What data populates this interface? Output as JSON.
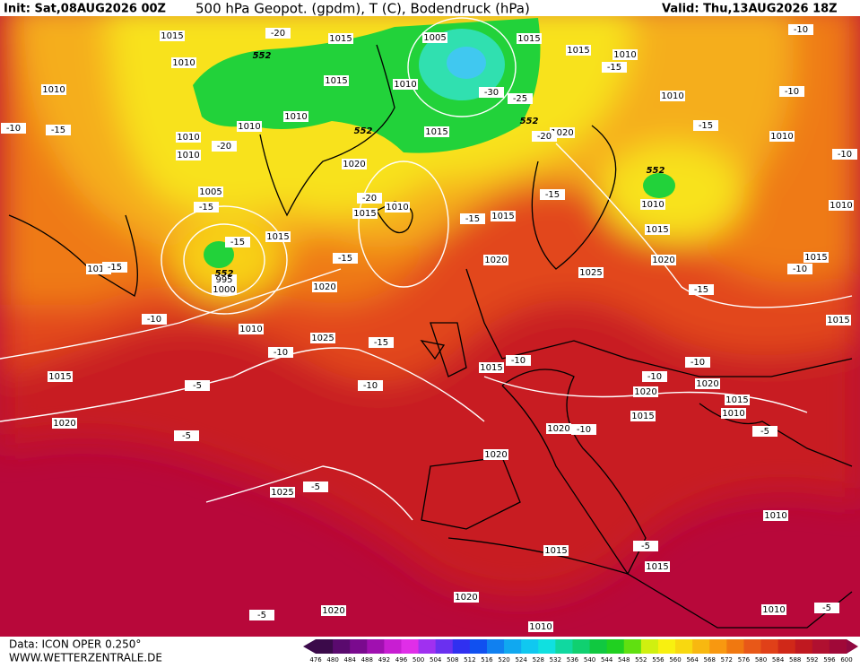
{
  "header": {
    "init": "Init: Sat,08AUG2026 00Z",
    "title": "500 hPa Geopot. (gpdm), T (C), Bodendruck (hPa)",
    "valid": "Valid: Thu,13AUG2026 18Z"
  },
  "footer": {
    "data": "Data: ICON OPER 0.250°",
    "site": "WWW.WETTERZENTRALE.DE"
  },
  "colorbar": {
    "labels": [
      476,
      480,
      484,
      488,
      492,
      496,
      500,
      504,
      508,
      512,
      516,
      520,
      524,
      528,
      532,
      536,
      540,
      544,
      548,
      552,
      556,
      560,
      564,
      568,
      572,
      576,
      580,
      584,
      588,
      592,
      596,
      600
    ],
    "colors": [
      "#3b0a4a",
      "#5a0a6e",
      "#7a0a8e",
      "#a010b0",
      "#c81ed2",
      "#e02ee8",
      "#a030f0",
      "#6a30f0",
      "#3030f0",
      "#1050f0",
      "#1080f0",
      "#10a8f0",
      "#10c8f0",
      "#10e0e0",
      "#10d8a0",
      "#10d070",
      "#10c840",
      "#20d020",
      "#60e010",
      "#d0f010",
      "#f8f010",
      "#f8d810",
      "#f8b810",
      "#f89810",
      "#f07810",
      "#e85818",
      "#e04018",
      "#d02818",
      "#c01820",
      "#b01030",
      "#a00838",
      "#900840"
    ]
  },
  "map_labels": {
    "isobars": [
      "1015",
      "1015",
      "1010",
      "1010",
      "1005",
      "1015",
      "1015",
      "1010",
      "1015",
      "1010",
      "1010",
      "1010",
      "1010",
      "1010",
      "1010",
      "1015",
      "1020",
      "1010",
      "1020",
      "1005",
      "1010",
      "1015",
      "1015",
      "1010",
      "1010",
      "1015",
      "1015",
      "1010",
      "1020",
      "1025",
      "1020",
      "1015",
      "995",
      "1000",
      "1020",
      "1010",
      "1015",
      "1025",
      "1015",
      "1015",
      "1020",
      "1020",
      "1015",
      "1010",
      "1015",
      "1020",
      "1020",
      "1020",
      "1025",
      "1010",
      "1015",
      "1015",
      "1020",
      "1020",
      "1010",
      "1010"
    ],
    "temperatures": [
      "-10",
      "-15",
      "-20",
      "-20",
      "-15",
      "-15",
      "-20",
      "-15",
      "-15",
      "-15",
      "-20",
      "-15",
      "-30",
      "-25",
      "-10",
      "-10",
      "-15",
      "-10",
      "-15",
      "-10",
      "-10",
      "-10",
      "-15",
      "-10",
      "-10",
      "-10",
      "-10",
      "-10",
      "-5",
      "-5",
      "-5",
      "-5",
      "-5",
      "-5",
      "-5",
      "-15"
    ],
    "geopotential": [
      "552",
      "552",
      "552",
      "552",
      "552"
    ]
  }
}
